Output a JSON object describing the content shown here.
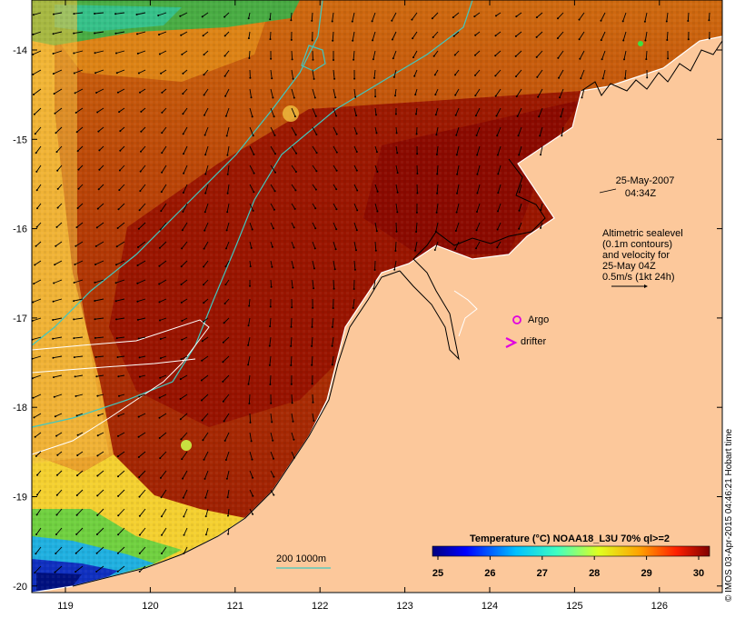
{
  "map": {
    "lon_ticks": [
      "119",
      "120",
      "121",
      "122",
      "123",
      "124",
      "125",
      "126"
    ],
    "lat_ticks": [
      "-14",
      "-15",
      "-16",
      "-17",
      "-18",
      "-19",
      "-20"
    ],
    "timestamp_date": "25-May-2007",
    "timestamp_time": "04:34Z",
    "legend_lines": [
      "Altimetric sealevel",
      "(0.1m contours)",
      "and velocity for",
      "25-May 04Z",
      "0.5m/s (1kt 24h)"
    ],
    "argo_label": "Argo",
    "drifter_label": "drifter",
    "depth_label": "200  1000m",
    "colorbar_title": "Temperature (°C) NOAA18_L3U 70% ql>=2",
    "colorbar_ticks": [
      "25",
      "26",
      "27",
      "28",
      "29",
      "30"
    ],
    "credit": "© IMOS 03-Apr-2015 04:46:21 Hobart time",
    "colors": {
      "land": "#fcc89b",
      "hot": "#8b0a00",
      "argo": "#e000e0",
      "bathymetry": "#40c8c0"
    }
  }
}
